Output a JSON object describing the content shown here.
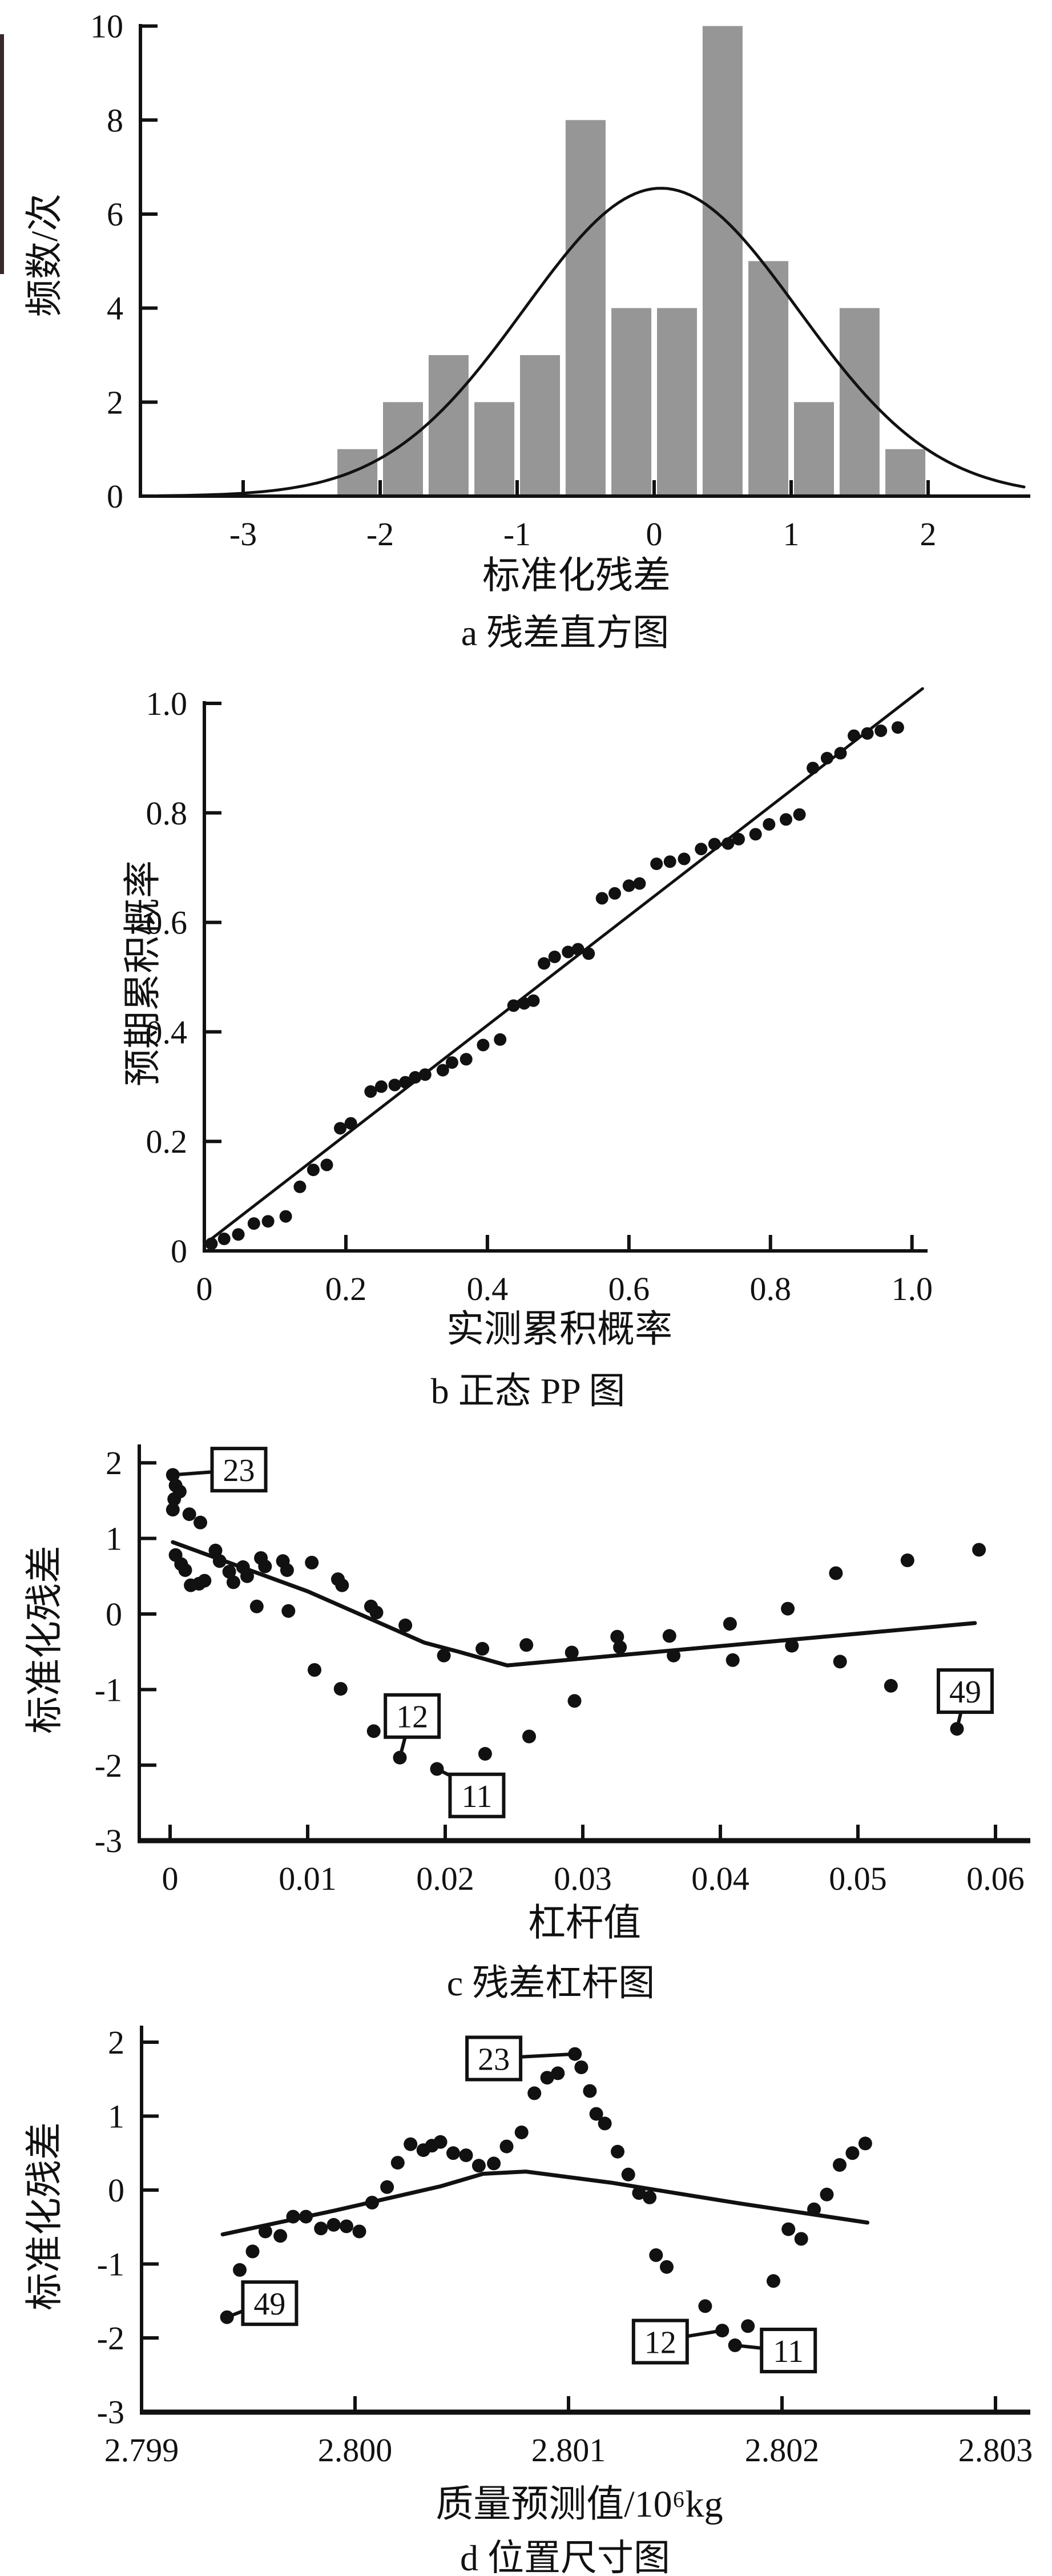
{
  "page": {
    "background": "#ffffff",
    "ink": "#111111",
    "bar_fill": "#969696",
    "artifact_color": "#38282a"
  },
  "chart_data": [
    {
      "id": "a",
      "type": "histogram",
      "caption": "a 残差直方图",
      "xlabel": "标准化残差",
      "ylabel": "频数/次",
      "xlim": [
        -3.75,
        2.75
      ],
      "ylim": [
        0,
        10.25
      ],
      "grid": false,
      "legend": "none",
      "x_ticks": [
        {
          "v": -3,
          "l": "-3"
        },
        {
          "v": -2,
          "l": "-2"
        },
        {
          "v": -1,
          "l": "-1"
        },
        {
          "v": 0,
          "l": "0"
        },
        {
          "v": 1,
          "l": "1"
        },
        {
          "v": 2,
          "l": "2"
        }
      ],
      "y_ticks": [
        {
          "v": 0,
          "l": "0"
        },
        {
          "v": 2,
          "l": "2"
        },
        {
          "v": 4,
          "l": "4"
        },
        {
          "v": 6,
          "l": "6"
        },
        {
          "v": 8,
          "l": "8"
        },
        {
          "v": 10,
          "l": "10"
        }
      ],
      "bin_width": 0.3333,
      "categories": [
        "-2.33",
        "-2.0",
        "-1.67",
        "-1.33",
        "-1.0",
        "-0.67",
        "-0.33",
        "0",
        "0.33",
        "0.67",
        "1.0",
        "1.33",
        "1.67"
      ],
      "values": [
        1,
        2,
        3,
        2,
        3,
        8,
        4,
        4,
        10,
        5,
        2,
        4,
        1
      ],
      "bars": [
        {
          "left": -2.333,
          "h": 1
        },
        {
          "left": -2.0,
          "h": 2
        },
        {
          "left": -1.667,
          "h": 3
        },
        {
          "left": -1.333,
          "h": 2
        },
        {
          "left": -1.0,
          "h": 3
        },
        {
          "left": -0.667,
          "h": 8
        },
        {
          "left": -0.333,
          "h": 4
        },
        {
          "left": 0.0,
          "h": 4
        },
        {
          "left": 0.333,
          "h": 10
        },
        {
          "left": 0.667,
          "h": 5
        },
        {
          "left": 1.0,
          "h": 2
        },
        {
          "left": 1.333,
          "h": 4
        },
        {
          "left": 1.667,
          "h": 1
        }
      ],
      "normal_curve": {
        "mean": 0.05,
        "sd": 1.0,
        "peak": 6.55,
        "range": [
          -3.62,
          2.72
        ]
      }
    },
    {
      "id": "b",
      "type": "pp",
      "caption": "b 正态 PP 图",
      "xlabel": "实测累积概率",
      "ylabel": "预期累积概率",
      "xlim": [
        0,
        1.02
      ],
      "ylim": [
        0,
        1.02
      ],
      "grid": false,
      "legend": "none",
      "x_ticks": [
        {
          "v": 0,
          "l": "0"
        },
        {
          "v": 0.2,
          "l": "0.2"
        },
        {
          "v": 0.4,
          "l": "0.4"
        },
        {
          "v": 0.6,
          "l": "0.6"
        },
        {
          "v": 0.8,
          "l": "0.8"
        },
        {
          "v": 1.0,
          "l": "1.0"
        }
      ],
      "y_ticks": [
        {
          "v": 0,
          "l": "0"
        },
        {
          "v": 0.2,
          "l": "0.2"
        },
        {
          "v": 0.4,
          "l": "0.4"
        },
        {
          "v": 0.6,
          "l": "0.6"
        },
        {
          "v": 0.8,
          "l": "0.8"
        },
        {
          "v": 1.0,
          "l": "1.0"
        }
      ],
      "ref_line": [
        [
          0,
          0.012
        ],
        [
          1.015,
          1.027
        ]
      ],
      "points": [
        [
          0.01,
          0.013
        ],
        [
          0.028,
          0.022
        ],
        [
          0.048,
          0.03
        ],
        [
          0.07,
          0.05
        ],
        [
          0.09,
          0.054
        ],
        [
          0.115,
          0.063
        ],
        [
          0.135,
          0.117
        ],
        [
          0.154,
          0.148
        ],
        [
          0.173,
          0.157
        ],
        [
          0.192,
          0.224
        ],
        [
          0.207,
          0.233
        ],
        [
          0.235,
          0.291
        ],
        [
          0.25,
          0.3
        ],
        [
          0.269,
          0.303
        ],
        [
          0.284,
          0.308
        ],
        [
          0.298,
          0.317
        ],
        [
          0.312,
          0.322
        ],
        [
          0.337,
          0.33
        ],
        [
          0.35,
          0.344
        ],
        [
          0.37,
          0.35
        ],
        [
          0.394,
          0.376
        ],
        [
          0.418,
          0.386
        ],
        [
          0.437,
          0.448
        ],
        [
          0.452,
          0.452
        ],
        [
          0.465,
          0.457
        ],
        [
          0.48,
          0.525
        ],
        [
          0.495,
          0.537
        ],
        [
          0.514,
          0.546
        ],
        [
          0.528,
          0.551
        ],
        [
          0.543,
          0.543
        ],
        [
          0.562,
          0.644
        ],
        [
          0.58,
          0.653
        ],
        [
          0.6,
          0.667
        ],
        [
          0.615,
          0.671
        ],
        [
          0.639,
          0.707
        ],
        [
          0.658,
          0.711
        ],
        [
          0.678,
          0.716
        ],
        [
          0.702,
          0.734
        ],
        [
          0.721,
          0.743
        ],
        [
          0.74,
          0.744
        ],
        [
          0.755,
          0.752
        ],
        [
          0.779,
          0.761
        ],
        [
          0.798,
          0.779
        ],
        [
          0.822,
          0.788
        ],
        [
          0.841,
          0.797
        ],
        [
          0.86,
          0.882
        ],
        [
          0.88,
          0.9
        ],
        [
          0.899,
          0.909
        ],
        [
          0.918,
          0.941
        ],
        [
          0.937,
          0.945
        ],
        [
          0.956,
          0.95
        ],
        [
          0.98,
          0.956
        ]
      ]
    },
    {
      "id": "c",
      "type": "scatter_trend",
      "caption": "c 残差杠杆图",
      "xlabel": "杠杆值",
      "ylabel": "标准化残差",
      "xlim": [
        -0.0022,
        0.0625
      ],
      "ylim": [
        -3,
        2.25
      ],
      "grid": false,
      "legend": "none",
      "x_ticks": [
        {
          "v": 0,
          "l": "0"
        },
        {
          "v": 0.01,
          "l": "0.01"
        },
        {
          "v": 0.02,
          "l": "0.02"
        },
        {
          "v": 0.03,
          "l": "0.03"
        },
        {
          "v": 0.04,
          "l": "0.04"
        },
        {
          "v": 0.05,
          "l": "0.05"
        },
        {
          "v": 0.06,
          "l": "0.06"
        }
      ],
      "y_ticks": [
        {
          "v": -3,
          "l": "-3"
        },
        {
          "v": -2,
          "l": "-2"
        },
        {
          "v": -1,
          "l": "-1"
        },
        {
          "v": 0,
          "l": "0"
        },
        {
          "v": 1,
          "l": "1"
        },
        {
          "v": 2,
          "l": "2"
        }
      ],
      "trend": [
        [
          0.0002,
          0.95
        ],
        [
          0.01,
          0.3
        ],
        [
          0.0185,
          -0.38
        ],
        [
          0.021,
          -0.5
        ],
        [
          0.0245,
          -0.68
        ],
        [
          0.0585,
          -0.12
        ]
      ],
      "points": [
        [
          0.0002,
          1.84
        ],
        [
          0.0004,
          1.7
        ],
        [
          0.0007,
          1.62
        ],
        [
          0.0003,
          1.52
        ],
        [
          0.0002,
          1.38
        ],
        [
          0.0014,
          1.32
        ],
        [
          0.0022,
          1.21
        ],
        [
          0.0004,
          0.78
        ],
        [
          0.0008,
          0.66
        ],
        [
          0.0011,
          0.58
        ],
        [
          0.0015,
          0.38
        ],
        [
          0.0021,
          0.4
        ],
        [
          0.0025,
          0.44
        ],
        [
          0.0033,
          0.84
        ],
        [
          0.0036,
          0.7
        ],
        [
          0.0043,
          0.56
        ],
        [
          0.0046,
          0.42
        ],
        [
          0.0053,
          0.62
        ],
        [
          0.0056,
          0.5
        ],
        [
          0.0063,
          0.1
        ],
        [
          0.0066,
          0.74
        ],
        [
          0.0069,
          0.63
        ],
        [
          0.0082,
          0.7
        ],
        [
          0.0085,
          0.58
        ],
        [
          0.0086,
          0.04
        ],
        [
          0.0103,
          0.68
        ],
        [
          0.0105,
          -0.74
        ],
        [
          0.0122,
          0.46
        ],
        [
          0.0125,
          0.38
        ],
        [
          0.0124,
          -0.99
        ],
        [
          0.0146,
          0.1
        ],
        [
          0.015,
          0.02
        ],
        [
          0.0148,
          -1.55
        ],
        [
          0.0171,
          -0.15
        ],
        [
          0.0167,
          -1.9
        ],
        [
          0.0199,
          -0.55
        ],
        [
          0.0194,
          -2.05
        ],
        [
          0.0227,
          -0.46
        ],
        [
          0.0229,
          -1.85
        ],
        [
          0.0259,
          -0.41
        ],
        [
          0.0261,
          -1.62
        ],
        [
          0.0292,
          -0.51
        ],
        [
          0.0294,
          -1.15
        ],
        [
          0.0325,
          -0.3
        ],
        [
          0.0327,
          -0.44
        ],
        [
          0.0363,
          -0.29
        ],
        [
          0.0366,
          -0.55
        ],
        [
          0.0407,
          -0.13
        ],
        [
          0.0409,
          -0.61
        ],
        [
          0.0449,
          0.07
        ],
        [
          0.0452,
          -0.42
        ],
        [
          0.0484,
          0.54
        ],
        [
          0.0487,
          -0.63
        ],
        [
          0.0536,
          0.71
        ],
        [
          0.0524,
          -0.95
        ],
        [
          0.0588,
          0.85
        ],
        [
          0.0572,
          -1.52
        ]
      ],
      "annotations": [
        {
          "label": "23",
          "point": [
            0.0002,
            1.84
          ],
          "box": [
            0.005,
            1.91
          ],
          "attach": [
            0.0031,
            1.88
          ]
        },
        {
          "label": "12",
          "point": [
            0.0167,
            -1.9
          ],
          "box": [
            0.0176,
            -1.35
          ],
          "attach": [
            0.0171,
            -1.62
          ]
        },
        {
          "label": "11",
          "point": [
            0.0194,
            -2.05
          ],
          "box": [
            0.0223,
            -2.4
          ],
          "attach": [
            0.0206,
            -2.16
          ]
        },
        {
          "label": "49",
          "point": [
            0.0572,
            -1.52
          ],
          "box": [
            0.0578,
            -1.02
          ],
          "attach": [
            0.0575,
            -1.29
          ]
        }
      ]
    },
    {
      "id": "d",
      "type": "scatter_trend",
      "caption": "d 位置尺寸图",
      "xlabel": "质量预测值/10⁶kg",
      "ylabel": "标准化残差",
      "xlim": [
        2.799,
        2.80316
      ],
      "ylim": [
        -3,
        2.25
      ],
      "grid": false,
      "legend": "none",
      "x_ticks": [
        {
          "v": 2.799,
          "l": "2.799"
        },
        {
          "v": 2.8,
          "l": "2.800"
        },
        {
          "v": 2.801,
          "l": "2.801"
        },
        {
          "v": 2.802,
          "l": "2.802"
        },
        {
          "v": 2.803,
          "l": "2.803"
        }
      ],
      "y_ticks": [
        {
          "v": -3,
          "l": "-3"
        },
        {
          "v": -2,
          "l": "-2"
        },
        {
          "v": -1,
          "l": "-1"
        },
        {
          "v": 0,
          "l": "0"
        },
        {
          "v": 1,
          "l": "1"
        },
        {
          "v": 2,
          "l": "2"
        }
      ],
      "trend": [
        [
          2.79938,
          -0.6
        ],
        [
          2.7999,
          -0.28
        ],
        [
          2.8004,
          0.05
        ],
        [
          2.8006,
          0.22
        ],
        [
          2.8008,
          0.25
        ],
        [
          2.8012,
          0.1
        ],
        [
          2.8018,
          -0.18
        ],
        [
          2.8024,
          -0.44
        ]
      ],
      "points": [
        [
          2.7994,
          -1.72
        ],
        [
          2.79946,
          -1.08
        ],
        [
          2.79952,
          -0.83
        ],
        [
          2.79958,
          -0.56
        ],
        [
          2.79965,
          -0.62
        ],
        [
          2.79971,
          -0.36
        ],
        [
          2.79977,
          -0.36
        ],
        [
          2.79984,
          -0.52
        ],
        [
          2.7999,
          -0.47
        ],
        [
          2.79996,
          -0.49
        ],
        [
          2.80002,
          -0.56
        ],
        [
          2.80008,
          -0.17
        ],
        [
          2.80015,
          0.04
        ],
        [
          2.8002,
          0.37
        ],
        [
          2.80026,
          0.62
        ],
        [
          2.80032,
          0.54
        ],
        [
          2.80036,
          0.6
        ],
        [
          2.8004,
          0.65
        ],
        [
          2.80046,
          0.5
        ],
        [
          2.80052,
          0.47
        ],
        [
          2.80058,
          0.33
        ],
        [
          2.80065,
          0.36
        ],
        [
          2.80071,
          0.59
        ],
        [
          2.80078,
          0.78
        ],
        [
          2.80084,
          1.31
        ],
        [
          2.8009,
          1.52
        ],
        [
          2.80095,
          1.58
        ],
        [
          2.80103,
          1.84
        ],
        [
          2.80106,
          1.66
        ],
        [
          2.8011,
          1.34
        ],
        [
          2.80113,
          1.03
        ],
        [
          2.80117,
          0.9
        ],
        [
          2.80123,
          0.52
        ],
        [
          2.80128,
          0.21
        ],
        [
          2.80133,
          -0.04
        ],
        [
          2.80138,
          -0.1
        ],
        [
          2.80141,
          -0.88
        ],
        [
          2.80146,
          -1.04
        ],
        [
          2.80164,
          -1.57
        ],
        [
          2.80172,
          -1.9
        ],
        [
          2.80178,
          -2.1
        ],
        [
          2.80184,
          -1.84
        ],
        [
          2.80196,
          -1.23
        ],
        [
          2.80203,
          -0.53
        ],
        [
          2.80209,
          -0.66
        ],
        [
          2.80215,
          -0.26
        ],
        [
          2.80221,
          -0.06
        ],
        [
          2.80227,
          0.34
        ],
        [
          2.80233,
          0.5
        ],
        [
          2.80239,
          0.63
        ]
      ],
      "annotations": [
        {
          "label": "23",
          "point": [
            2.80103,
            1.84
          ],
          "box": [
            2.80065,
            1.78
          ],
          "attach": [
            2.80077,
            1.8
          ]
        },
        {
          "label": "49",
          "point": [
            2.7994,
            -1.72
          ],
          "box": [
            2.7996,
            -1.53
          ],
          "attach": [
            2.79948,
            -1.63
          ]
        },
        {
          "label": "12",
          "point": [
            2.80172,
            -1.9
          ],
          "box": [
            2.80143,
            -2.05
          ],
          "attach": [
            2.80155,
            -1.98
          ]
        },
        {
          "label": "11",
          "point": [
            2.80178,
            -2.1
          ],
          "box": [
            2.80203,
            -2.17
          ],
          "attach": [
            2.80191,
            -2.14
          ]
        }
      ]
    }
  ]
}
